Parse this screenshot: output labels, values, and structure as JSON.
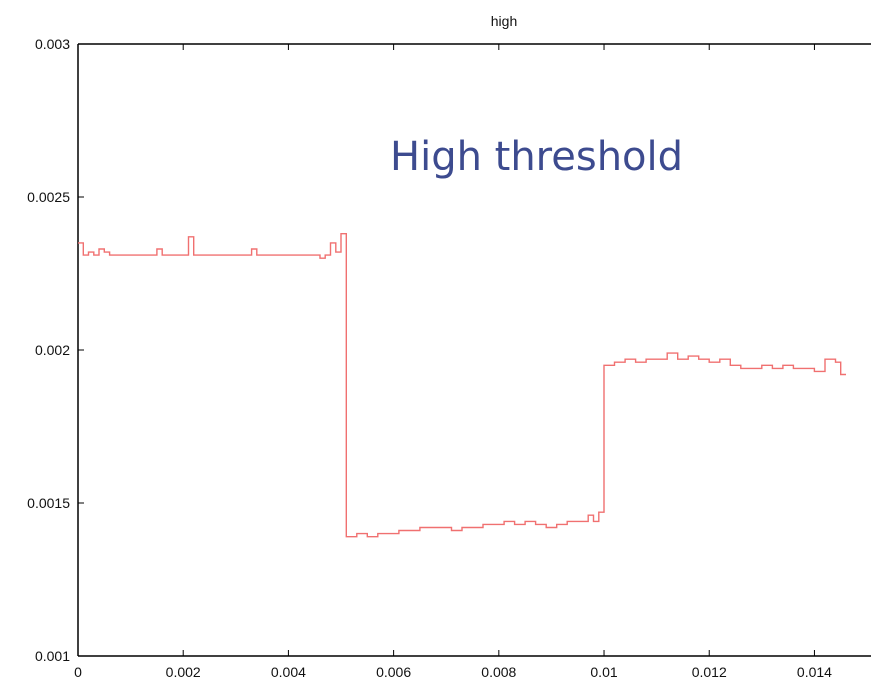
{
  "chart_data": {
    "type": "line",
    "title": "high",
    "annotation": "High threshold",
    "annotation_color": "#3d4b8f",
    "line_color": "#f07070",
    "xlim": [
      0,
      0.0146
    ],
    "ylim": [
      0.001,
      0.003
    ],
    "x_ticks": [
      {
        "value": 0,
        "label": "0"
      },
      {
        "value": 0.002,
        "label": "0.002"
      },
      {
        "value": 0.004,
        "label": "0.004"
      },
      {
        "value": 0.006,
        "label": "0.006"
      },
      {
        "value": 0.008,
        "label": "0.008"
      },
      {
        "value": 0.01,
        "label": "0.01"
      },
      {
        "value": 0.012,
        "label": "0.012"
      },
      {
        "value": 0.014,
        "label": "0.014"
      }
    ],
    "y_ticks": [
      {
        "value": 0.001,
        "label": "0.001"
      },
      {
        "value": 0.0015,
        "label": "0.0015"
      },
      {
        "value": 0.002,
        "label": "0.002"
      },
      {
        "value": 0.0025,
        "label": "0.0025"
      },
      {
        "value": 0.003,
        "label": "0.003"
      }
    ],
    "series": [
      {
        "style": "step",
        "x": [
          0,
          0.0001,
          0.0002,
          0.0003,
          0.0004,
          0.0005,
          0.0006,
          0.0008,
          0.001,
          0.0013,
          0.0015,
          0.0016,
          0.0021,
          0.0022,
          0.0033,
          0.0034,
          0.0045,
          0.0046,
          0.0047,
          0.0048,
          0.0049,
          0.005,
          0.0051,
          0.0053,
          0.0055,
          0.0057,
          0.0059,
          0.0061,
          0.0063,
          0.0065,
          0.0067,
          0.0069,
          0.0071,
          0.0073,
          0.0075,
          0.0077,
          0.0079,
          0.0081,
          0.0083,
          0.0085,
          0.0087,
          0.0089,
          0.0091,
          0.0093,
          0.0095,
          0.0097,
          0.0098,
          0.0099,
          0.01,
          0.0102,
          0.0104,
          0.0106,
          0.0108,
          0.011,
          0.0112,
          0.0114,
          0.0116,
          0.0118,
          0.012,
          0.0122,
          0.0124,
          0.0126,
          0.0128,
          0.013,
          0.0132,
          0.0134,
          0.0136,
          0.0138,
          0.014,
          0.0142,
          0.0144,
          0.0145
        ],
        "y": [
          0.00235,
          0.00231,
          0.00232,
          0.00231,
          0.00233,
          0.00232,
          0.00231,
          0.00231,
          0.00231,
          0.00231,
          0.00233,
          0.00231,
          0.00237,
          0.00231,
          0.00233,
          0.00231,
          0.00231,
          0.0023,
          0.00231,
          0.00235,
          0.00232,
          0.00238,
          0.00139,
          0.0014,
          0.00139,
          0.0014,
          0.0014,
          0.00141,
          0.00141,
          0.00142,
          0.00142,
          0.00142,
          0.00141,
          0.00142,
          0.00142,
          0.00143,
          0.00143,
          0.00144,
          0.00143,
          0.00144,
          0.00143,
          0.00142,
          0.00143,
          0.00144,
          0.00144,
          0.00146,
          0.00144,
          0.00147,
          0.00195,
          0.00196,
          0.00197,
          0.00196,
          0.00197,
          0.00197,
          0.00199,
          0.00197,
          0.00198,
          0.00197,
          0.00196,
          0.00197,
          0.00195,
          0.00194,
          0.00194,
          0.00195,
          0.00194,
          0.00195,
          0.00194,
          0.00194,
          0.00193,
          0.00197,
          0.00196,
          0.00192
        ]
      }
    ]
  }
}
